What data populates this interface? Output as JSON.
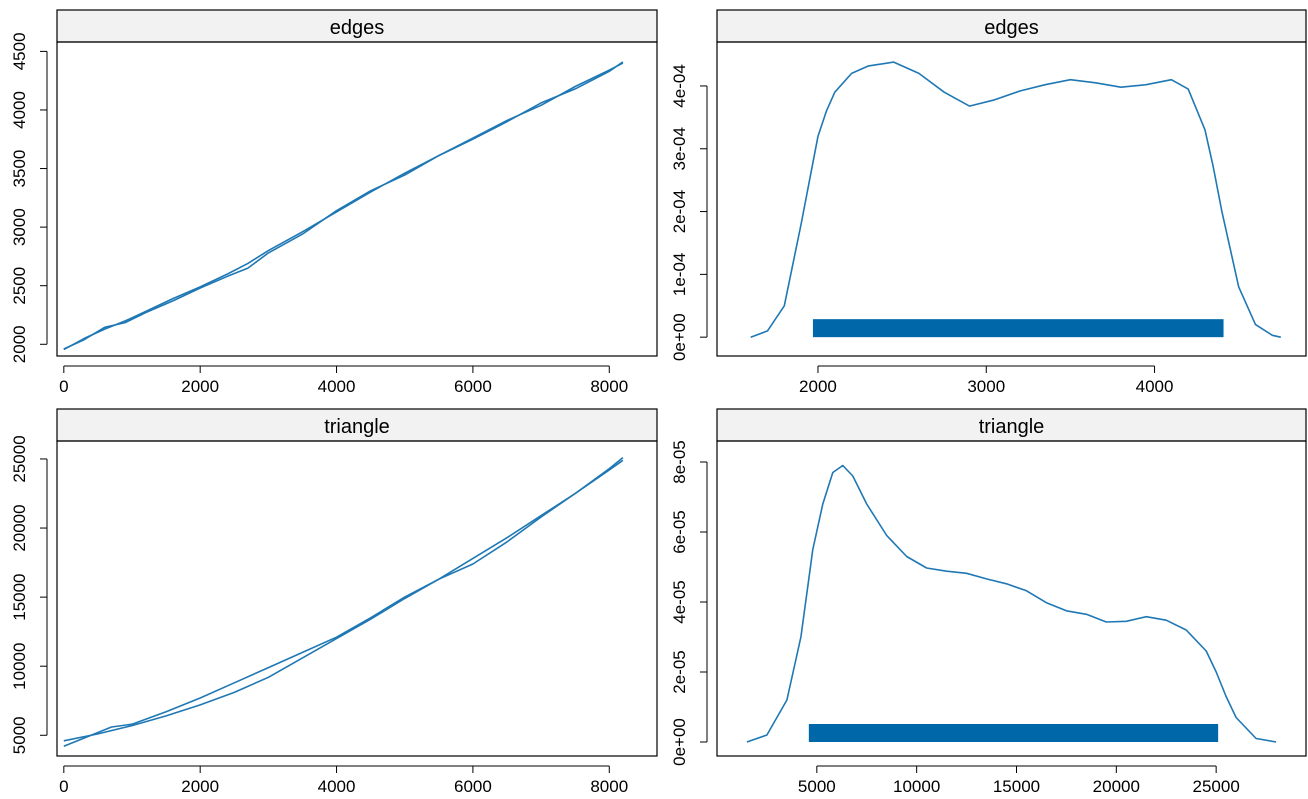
{
  "colors": {
    "line": "#1f78b4",
    "rug": "#0068a8",
    "strip": "#f2f2f2",
    "axis": "#000000"
  },
  "chart_data": [
    {
      "type": "line",
      "title": "edges",
      "xlim": [
        -100,
        8700
      ],
      "ylim": [
        1900,
        4580
      ],
      "xticks": [
        0,
        2000,
        4000,
        6000,
        8000
      ],
      "xtick_labels": [
        "0",
        "2000",
        "4000",
        "6000",
        "8000"
      ],
      "yticks": [
        2000,
        2500,
        3000,
        3500,
        4000,
        4500
      ],
      "ytick_labels": [
        "2000",
        "2500",
        "3000",
        "3500",
        "4000",
        "4500"
      ],
      "series": [
        {
          "x": [
            0,
            300,
            600,
            900,
            1200,
            1600,
            2000,
            2400,
            2700,
            3000,
            3500,
            4000,
            4500,
            5000,
            5500,
            6000,
            6500,
            7000,
            7500,
            8000,
            8200
          ],
          "y": [
            1960,
            2040,
            2145,
            2185,
            2270,
            2370,
            2480,
            2580,
            2650,
            2780,
            2940,
            3140,
            3310,
            3445,
            3610,
            3750,
            3900,
            4060,
            4180,
            4330,
            4410
          ]
        },
        {
          "x": [
            0,
            300,
            600,
            900,
            1200,
            1600,
            2000,
            2400,
            2700,
            3000,
            3500,
            4000,
            4500,
            5000,
            5500,
            6000,
            6500,
            7000,
            7500,
            8000,
            8200
          ],
          "y": [
            1955,
            2050,
            2130,
            2200,
            2280,
            2390,
            2490,
            2600,
            2690,
            2800,
            2960,
            3130,
            3300,
            3460,
            3610,
            3760,
            3910,
            4040,
            4200,
            4340,
            4400
          ]
        }
      ]
    },
    {
      "type": "area",
      "title": "edges",
      "xlim": [
        1400,
        4900
      ],
      "ylim": [
        -3e-05,
        0.00047
      ],
      "xticks": [
        2000,
        3000,
        4000
      ],
      "xtick_labels": [
        "2000",
        "3000",
        "4000"
      ],
      "yticks": [
        0,
        0.0001,
        0.0002,
        0.0003,
        0.0004
      ],
      "ytick_labels": [
        "0e+00",
        "1e-04",
        "2e-04",
        "3e-04",
        "4e-04"
      ],
      "series": [
        {
          "x": [
            1600,
            1700,
            1800,
            1900,
            2000,
            2050,
            2100,
            2200,
            2300,
            2450,
            2600,
            2750,
            2900,
            3050,
            3200,
            3350,
            3500,
            3650,
            3800,
            3950,
            4100,
            4200,
            4300,
            4350,
            4400,
            4450,
            4500,
            4600,
            4700,
            4750
          ],
          "y": [
            0.0,
            1e-05,
            5e-05,
            0.00018,
            0.00032,
            0.00036,
            0.00039,
            0.00042,
            0.000432,
            0.000438,
            0.00042,
            0.00039,
            0.000368,
            0.000378,
            0.000392,
            0.000402,
            0.00041,
            0.000405,
            0.000398,
            0.000402,
            0.00041,
            0.000395,
            0.00033,
            0.00027,
            0.0002,
            0.00014,
            8e-05,
            2e-05,
            3e-06,
            0.0
          ]
        }
      ],
      "rug": [
        1970,
        4410
      ]
    },
    {
      "type": "line",
      "title": "triangle",
      "xlim": [
        -100,
        8700
      ],
      "ylim": [
        3500,
        26300
      ],
      "xticks": [
        0,
        2000,
        4000,
        6000,
        8000
      ],
      "xtick_labels": [
        "0",
        "2000",
        "4000",
        "6000",
        "8000"
      ],
      "yticks": [
        5000,
        10000,
        15000,
        20000,
        25000
      ],
      "ytick_labels": [
        "5000",
        "10000",
        "15000",
        "20000",
        "25000"
      ],
      "series": [
        {
          "x": [
            0,
            500,
            1000,
            1500,
            2000,
            2500,
            3000,
            3500,
            4000,
            4500,
            5000,
            5500,
            6000,
            6500,
            7000,
            7500,
            8000,
            8200
          ],
          "y": [
            4600,
            5100,
            5700,
            6400,
            7200,
            8100,
            9200,
            10600,
            12000,
            13400,
            14900,
            16300,
            17800,
            19300,
            20900,
            22500,
            24200,
            24900
          ]
        },
        {
          "x": [
            0,
            300,
            700,
            1000,
            1500,
            2000,
            2500,
            3000,
            3500,
            4000,
            4500,
            5000,
            5500,
            6000,
            6500,
            7000,
            7500,
            8000,
            8200
          ],
          "y": [
            4200,
            4800,
            5600,
            5800,
            6700,
            7700,
            8800,
            9900,
            11000,
            12100,
            13500,
            15000,
            16300,
            17400,
            19000,
            20800,
            22500,
            24300,
            25100
          ]
        }
      ]
    },
    {
      "type": "area",
      "title": "triangle",
      "xlim": [
        0,
        29500
      ],
      "ylim": [
        -4e-06,
        8.6e-05
      ],
      "xticks": [
        5000,
        10000,
        15000,
        20000,
        25000
      ],
      "xtick_labels": [
        "5000",
        "10000",
        "15000",
        "20000",
        "25000"
      ],
      "yticks": [
        0,
        2e-05,
        4e-05,
        6e-05,
        8e-05
      ],
      "ytick_labels": [
        "0e+00",
        "2e-05",
        "4e-05",
        "6e-05",
        "8e-05"
      ],
      "series": [
        {
          "x": [
            1500,
            2500,
            3500,
            4200,
            4800,
            5300,
            5800,
            6300,
            6800,
            7500,
            8500,
            9500,
            10500,
            11500,
            12500,
            13500,
            14500,
            15500,
            16500,
            17500,
            18500,
            19500,
            20500,
            21500,
            22500,
            23500,
            24500,
            25000,
            25500,
            26000,
            27000,
            28000
          ],
          "y": [
            0.0,
            2e-06,
            1.2e-05,
            3e-05,
            5.5e-05,
            6.8e-05,
            7.7e-05,
            7.9e-05,
            7.6e-05,
            6.8e-05,
            5.9e-05,
            5.3e-05,
            4.97e-05,
            4.88e-05,
            4.82e-05,
            4.66e-05,
            4.52e-05,
            4.32e-05,
            3.98e-05,
            3.75e-05,
            3.65e-05,
            3.43e-05,
            3.45e-05,
            3.58e-05,
            3.48e-05,
            3.2e-05,
            2.6e-05,
            2e-05,
            1.3e-05,
            7e-06,
            1e-06,
            0.0
          ]
        }
      ],
      "rug": [
        4600,
        25100
      ]
    }
  ]
}
